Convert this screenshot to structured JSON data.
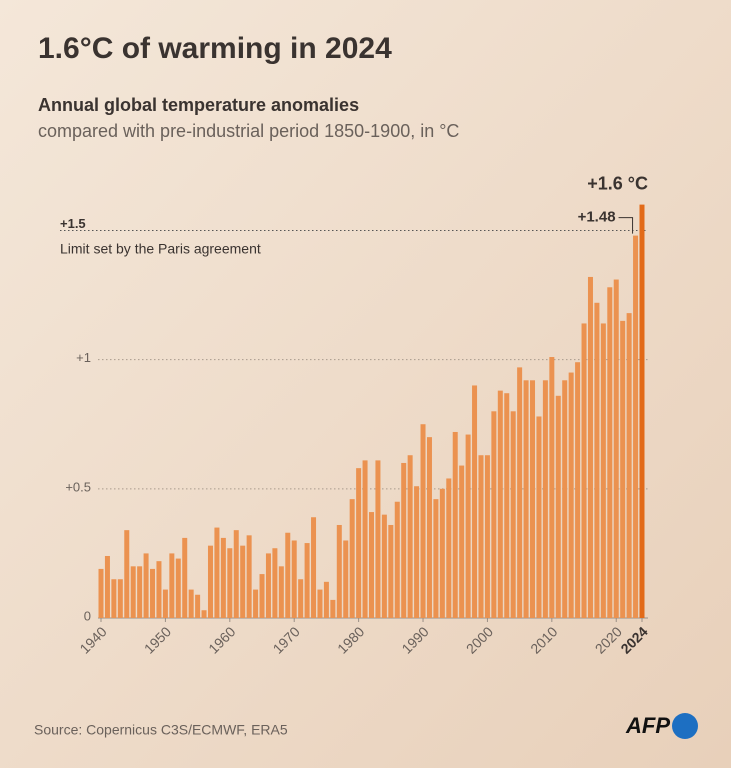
{
  "chart_data": {
    "type": "bar",
    "title": "1.6°C of warming in 2024",
    "subtitle": "Annual global temperature anomalies",
    "subtitle2": "compared with pre-industrial period 1850-1900, in °C",
    "annotations": {
      "limit": "Limit set by the Paris agreement",
      "last": "+1.6 °C",
      "prev": "+1.48"
    },
    "source": "Source: Copernicus C3S/ECMWF, ERA5",
    "logo": "AFP",
    "x": [
      1940,
      1941,
      1942,
      1943,
      1944,
      1945,
      1946,
      1947,
      1948,
      1949,
      1950,
      1951,
      1952,
      1953,
      1954,
      1955,
      1956,
      1957,
      1958,
      1959,
      1960,
      1961,
      1962,
      1963,
      1964,
      1965,
      1966,
      1967,
      1968,
      1969,
      1970,
      1971,
      1972,
      1973,
      1974,
      1975,
      1976,
      1977,
      1978,
      1979,
      1980,
      1981,
      1982,
      1983,
      1984,
      1985,
      1986,
      1987,
      1988,
      1989,
      1990,
      1991,
      1992,
      1993,
      1994,
      1995,
      1996,
      1997,
      1998,
      1999,
      2000,
      2001,
      2002,
      2003,
      2004,
      2005,
      2006,
      2007,
      2008,
      2009,
      2010,
      2011,
      2012,
      2013,
      2014,
      2015,
      2016,
      2017,
      2018,
      2019,
      2020,
      2021,
      2022,
      2023,
      2024
    ],
    "values": [
      0.19,
      0.24,
      0.15,
      0.15,
      0.34,
      0.2,
      0.2,
      0.25,
      0.19,
      0.22,
      0.11,
      0.25,
      0.23,
      0.31,
      0.11,
      0.09,
      0.03,
      0.28,
      0.35,
      0.31,
      0.27,
      0.34,
      0.28,
      0.32,
      0.11,
      0.17,
      0.25,
      0.27,
      0.2,
      0.33,
      0.3,
      0.15,
      0.29,
      0.39,
      0.11,
      0.14,
      0.07,
      0.36,
      0.3,
      0.46,
      0.58,
      0.61,
      0.41,
      0.61,
      0.4,
      0.36,
      0.45,
      0.6,
      0.63,
      0.51,
      0.75,
      0.7,
      0.46,
      0.5,
      0.54,
      0.72,
      0.59,
      0.71,
      0.9,
      0.63,
      0.63,
      0.8,
      0.88,
      0.87,
      0.8,
      0.97,
      0.92,
      0.92,
      0.78,
      0.92,
      1.01,
      0.86,
      0.92,
      0.95,
      0.99,
      1.14,
      1.32,
      1.22,
      1.14,
      1.28,
      1.31,
      1.15,
      1.18,
      1.48,
      1.6
    ],
    "color": "#eb9250",
    "highlight_color": "#e26a18",
    "xlim": [
      1940,
      2024
    ],
    "xticks": [
      1940,
      1950,
      1960,
      1970,
      1980,
      1990,
      2000,
      2010,
      2020,
      2024
    ],
    "ylim": [
      0,
      1.6
    ],
    "yticks": [
      0,
      {
        "value": 0.5,
        "label": "+0.5"
      },
      {
        "value": 1,
        "label": "+1"
      },
      {
        "value": 1.5,
        "label": "+1.5"
      }
    ],
    "grid": true
  }
}
